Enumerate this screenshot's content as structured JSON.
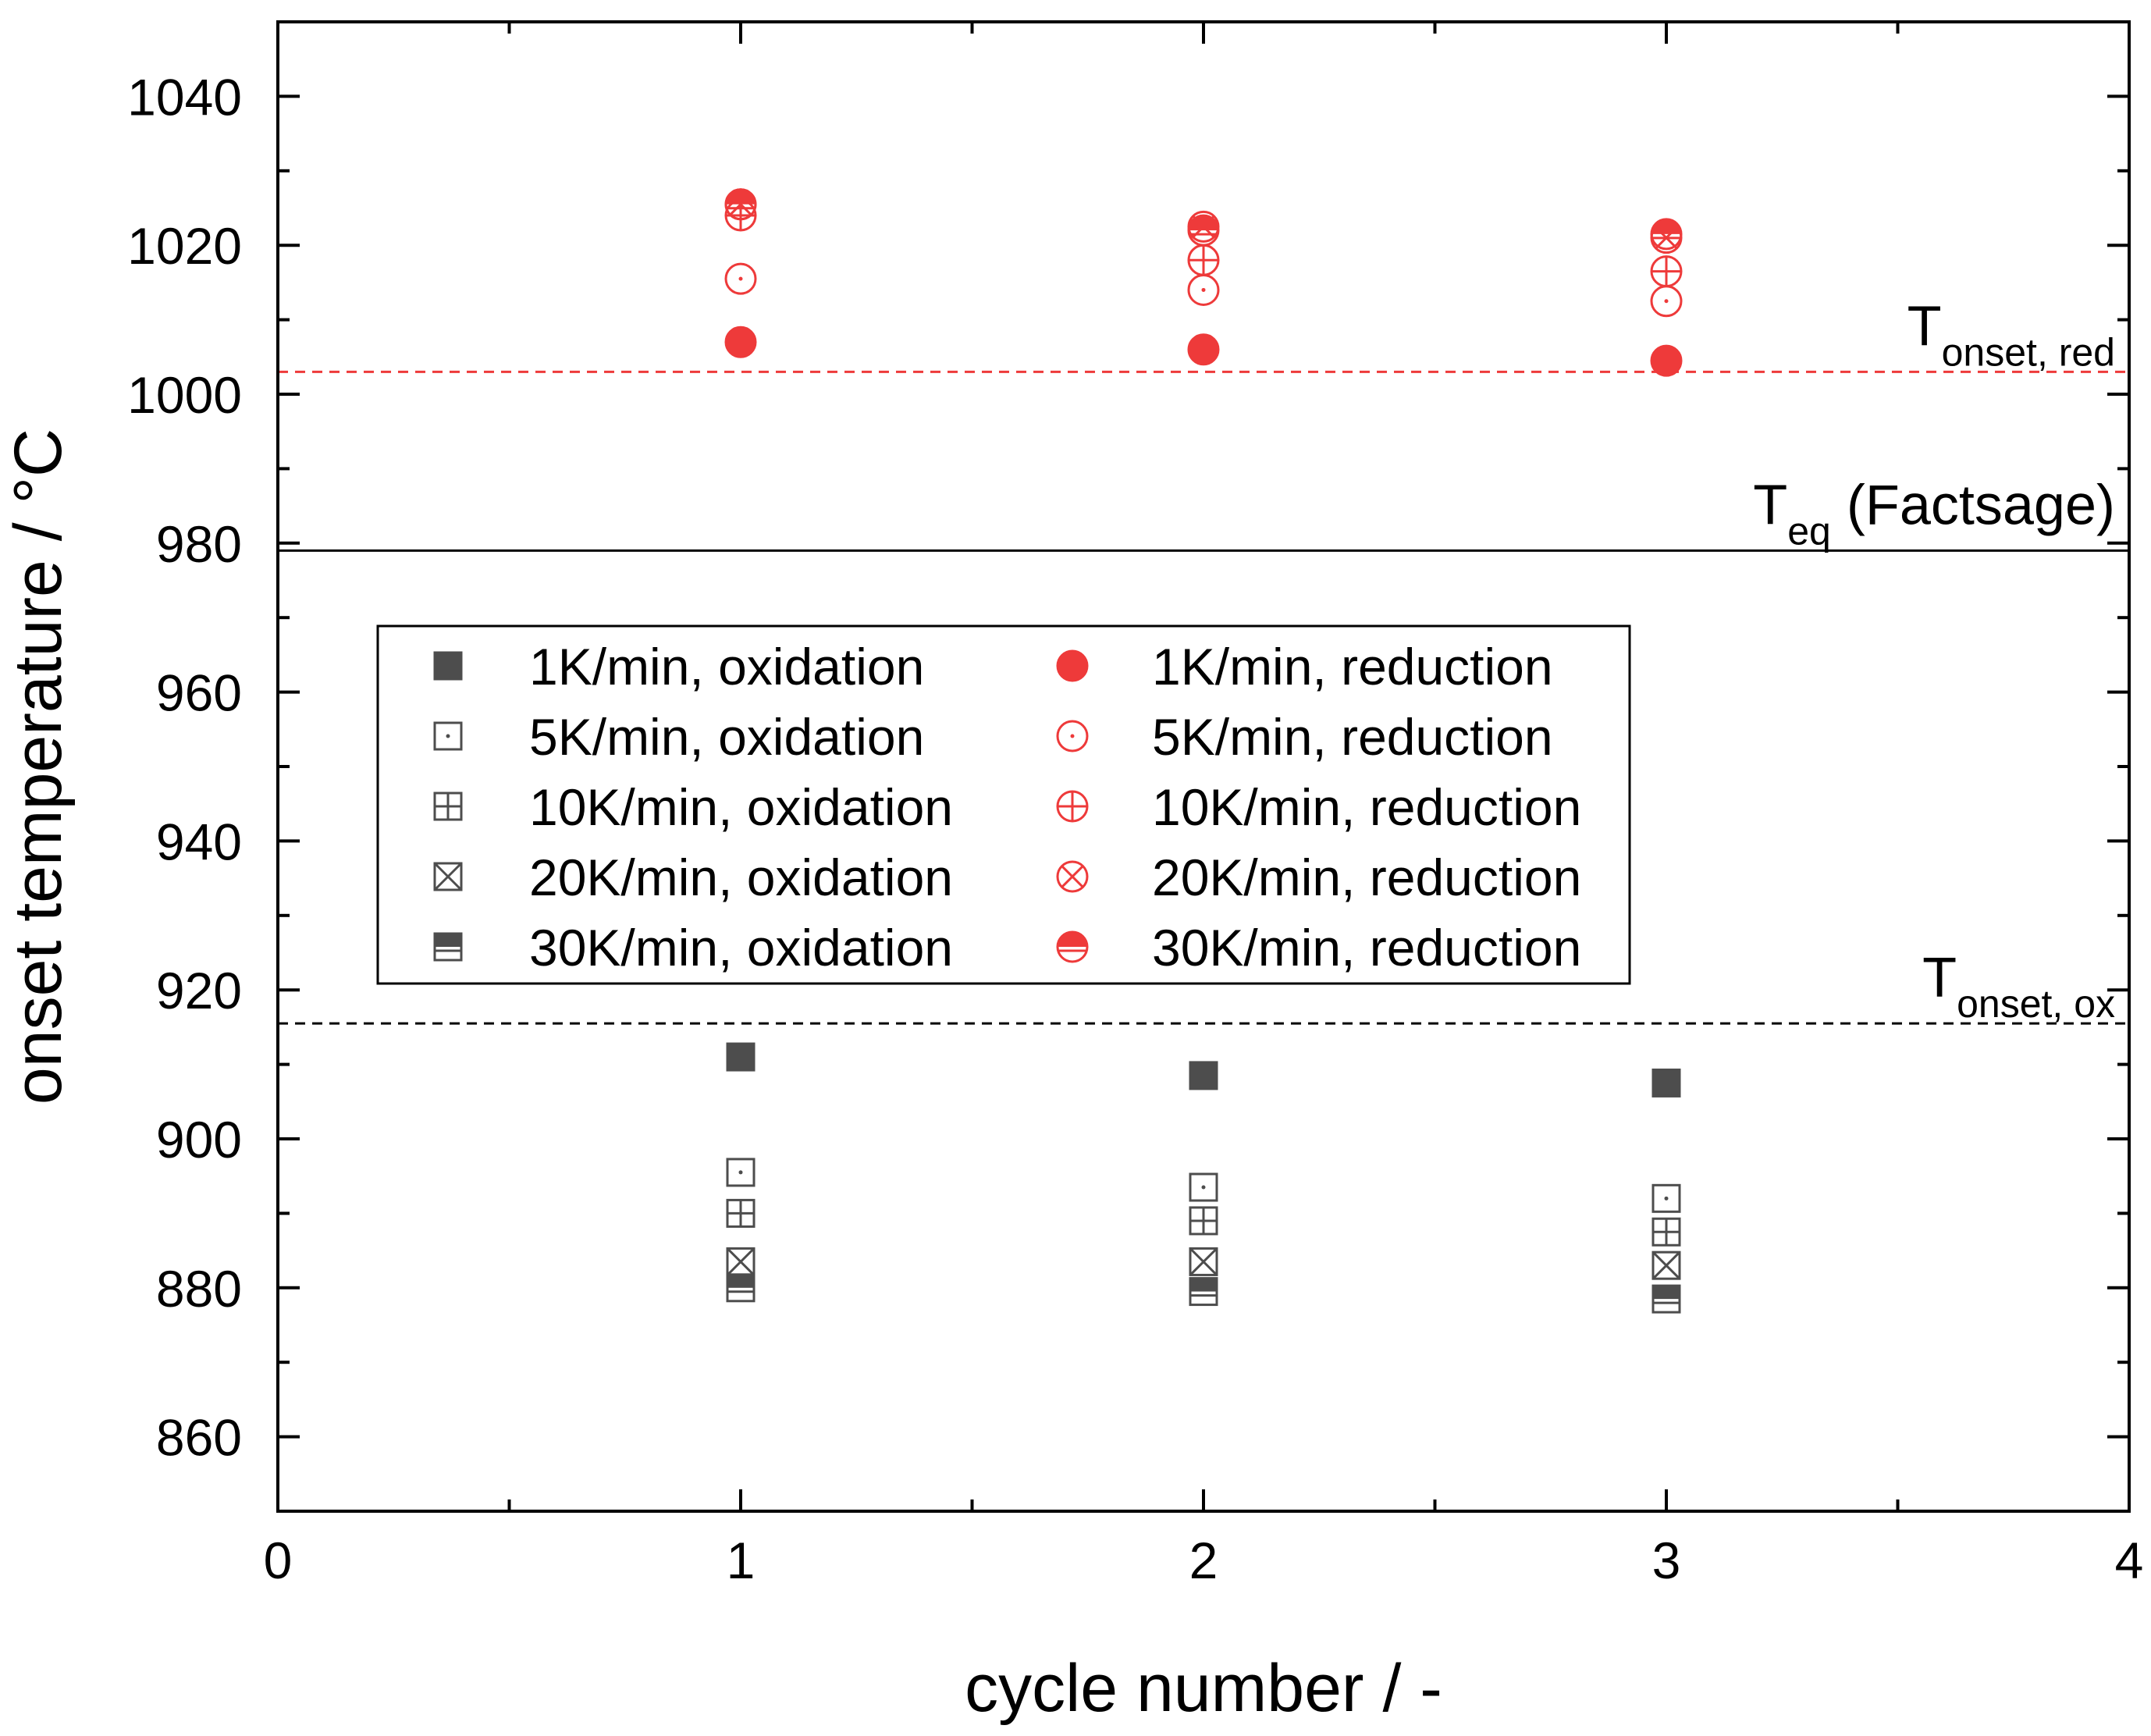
{
  "chart_data": {
    "type": "scatter",
    "xlabel": "cycle number / -",
    "ylabel": "onset temperature / °C",
    "xlim": [
      0,
      4
    ],
    "ylim": [
      850,
      1050
    ],
    "xticks": [
      0,
      1,
      2,
      3,
      4
    ],
    "yticks": [
      860,
      880,
      900,
      920,
      940,
      960,
      980,
      1000,
      1020,
      1040
    ],
    "grid": false,
    "legend_placement": "center-left",
    "colors": {
      "oxidation": "#4d4d4d",
      "reduction": "#ee3a3a",
      "axis": "#000000"
    },
    "reference_lines": [
      {
        "name": "T_eq",
        "main": "T",
        "sub": "eq",
        "suffix": " (Factsage)",
        "y": 979,
        "style": "solid",
        "color": "#000000"
      },
      {
        "name": "T_onset_red",
        "main": "T",
        "sub": "onset, red",
        "suffix": "",
        "y": 1003,
        "style": "dashed",
        "color": "#ee3a3a"
      },
      {
        "name": "T_onset_ox",
        "main": "T",
        "sub": "onset, ox",
        "suffix": "",
        "y": 915.5,
        "style": "dashed",
        "color": "#000000"
      }
    ],
    "series": [
      {
        "name": "1K/min, oxidation",
        "marker": "square-filled",
        "group": "oxidation",
        "x": [
          1,
          2,
          3
        ],
        "y": [
          911,
          908.5,
          907.5
        ]
      },
      {
        "name": "5K/min, oxidation",
        "marker": "square-dot",
        "group": "oxidation",
        "x": [
          1,
          2,
          3
        ],
        "y": [
          895.5,
          893.5,
          892
        ]
      },
      {
        "name": "10K/min, oxidation",
        "marker": "square-plus",
        "group": "oxidation",
        "x": [
          1,
          2,
          3
        ],
        "y": [
          890,
          889,
          887.5
        ]
      },
      {
        "name": "20K/min, oxidation",
        "marker": "square-x",
        "group": "oxidation",
        "x": [
          1,
          2,
          3
        ],
        "y": [
          883.5,
          883.5,
          883
        ]
      },
      {
        "name": "30K/min, oxidation",
        "marker": "square-half",
        "group": "oxidation",
        "x": [
          1,
          2,
          3
        ],
        "y": [
          880,
          879.5,
          878.5
        ]
      },
      {
        "name": "1K/min, reduction",
        "marker": "circle-filled",
        "group": "reduction",
        "x": [
          1,
          2,
          3
        ],
        "y": [
          1007,
          1006,
          1004.5
        ]
      },
      {
        "name": "5K/min, reduction",
        "marker": "circle-dot",
        "group": "reduction",
        "x": [
          1,
          2,
          3
        ],
        "y": [
          1015.5,
          1014,
          1012.5
        ]
      },
      {
        "name": "10K/min, reduction",
        "marker": "circle-plus",
        "group": "reduction",
        "x": [
          1,
          2,
          3
        ],
        "y": [
          1024,
          1018,
          1016.5
        ]
      },
      {
        "name": "20K/min, reduction",
        "marker": "circle-x",
        "group": "reduction",
        "x": [
          1,
          2,
          3
        ],
        "y": [
          1025.5,
          1022.5,
          1021
        ]
      },
      {
        "name": "30K/min, reduction",
        "marker": "circle-half",
        "group": "reduction",
        "x": [
          1,
          2,
          3
        ],
        "y": [
          1025.5,
          1022,
          1021.5
        ]
      }
    ]
  }
}
